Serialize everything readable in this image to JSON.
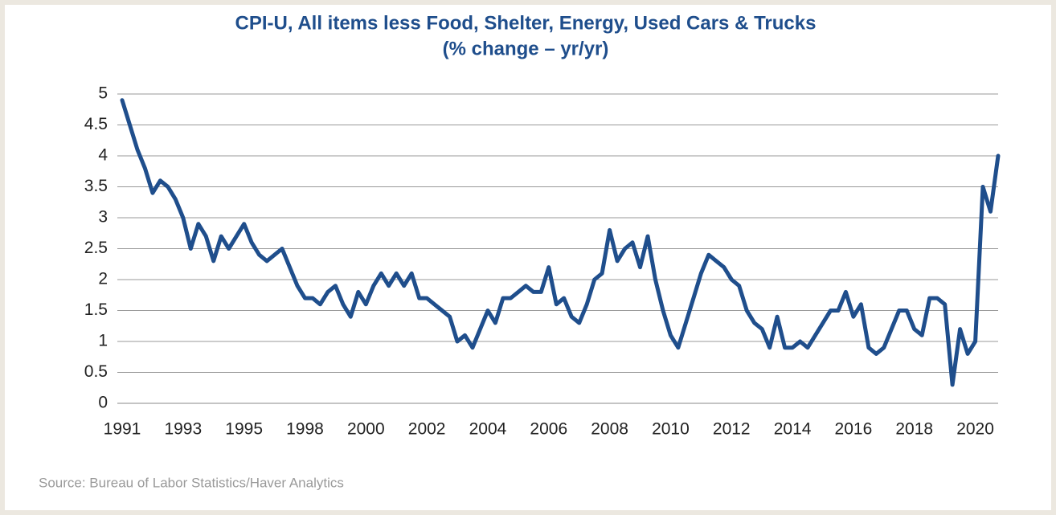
{
  "chart_data": {
    "type": "line",
    "title": "CPI-U, All items less Food, Shelter, Energy, Used Cars & Trucks",
    "subtitle": "(% change – yr/yr)",
    "source": "Source: Bureau of Labor Statistics/Haver Analytics",
    "categories": [
      "1991",
      null,
      null,
      null,
      null,
      null,
      null,
      null,
      "1993",
      null,
      null,
      null,
      null,
      null,
      null,
      null,
      "1995",
      null,
      null,
      null,
      null,
      null,
      null,
      null,
      "1998",
      null,
      null,
      null,
      null,
      null,
      null,
      null,
      "2000",
      null,
      null,
      null,
      null,
      null,
      null,
      null,
      "2002",
      null,
      null,
      null,
      null,
      null,
      null,
      null,
      "2004",
      null,
      null,
      null,
      null,
      null,
      null,
      null,
      "2006",
      null,
      null,
      null,
      null,
      null,
      null,
      null,
      "2008",
      null,
      null,
      null,
      null,
      null,
      null,
      null,
      "2010",
      null,
      null,
      null,
      null,
      null,
      null,
      null,
      "2012",
      null,
      null,
      null,
      null,
      null,
      null,
      null,
      "2014",
      null,
      null,
      null,
      null,
      null,
      null,
      null,
      "2016",
      null,
      null,
      null,
      null,
      null,
      null,
      null,
      "2018",
      null,
      null,
      null,
      null,
      null,
      null,
      null,
      "2020",
      null,
      null,
      null
    ],
    "values": [
      4.9,
      4.5,
      4.1,
      3.8,
      3.4,
      3.6,
      3.5,
      3.3,
      3.0,
      2.5,
      2.9,
      2.7,
      2.3,
      2.7,
      2.5,
      2.7,
      2.9,
      2.6,
      2.4,
      2.3,
      2.4,
      2.5,
      2.2,
      1.9,
      1.7,
      1.7,
      1.6,
      1.8,
      1.9,
      1.6,
      1.4,
      1.8,
      1.6,
      1.9,
      2.1,
      1.9,
      2.1,
      1.9,
      2.1,
      1.7,
      1.7,
      1.6,
      1.5,
      1.4,
      1.0,
      1.1,
      0.9,
      1.2,
      1.5,
      1.3,
      1.7,
      1.7,
      1.8,
      1.9,
      1.8,
      1.8,
      2.2,
      1.6,
      1.7,
      1.4,
      1.3,
      1.6,
      2.0,
      2.1,
      2.8,
      2.3,
      2.5,
      2.6,
      2.2,
      2.7,
      2.0,
      1.5,
      1.1,
      0.9,
      1.3,
      1.7,
      2.1,
      2.4,
      2.3,
      2.2,
      2.0,
      1.9,
      1.5,
      1.3,
      1.2,
      0.9,
      1.4,
      0.9,
      0.9,
      1.0,
      0.9,
      1.1,
      1.3,
      1.5,
      1.5,
      1.8,
      1.4,
      1.6,
      0.9,
      0.8,
      0.9,
      1.2,
      1.5,
      1.5,
      1.2,
      1.1,
      1.7,
      1.7,
      1.6,
      0.3,
      1.2,
      0.8,
      1.0,
      3.5,
      3.1,
      4.0
    ],
    "color": "#1f4e8c",
    "ylim": [
      0,
      5
    ],
    "yticks": [
      0,
      0.5,
      1,
      1.5,
      2,
      2.5,
      3,
      3.5,
      4,
      4.5,
      5
    ],
    "grid": true
  }
}
